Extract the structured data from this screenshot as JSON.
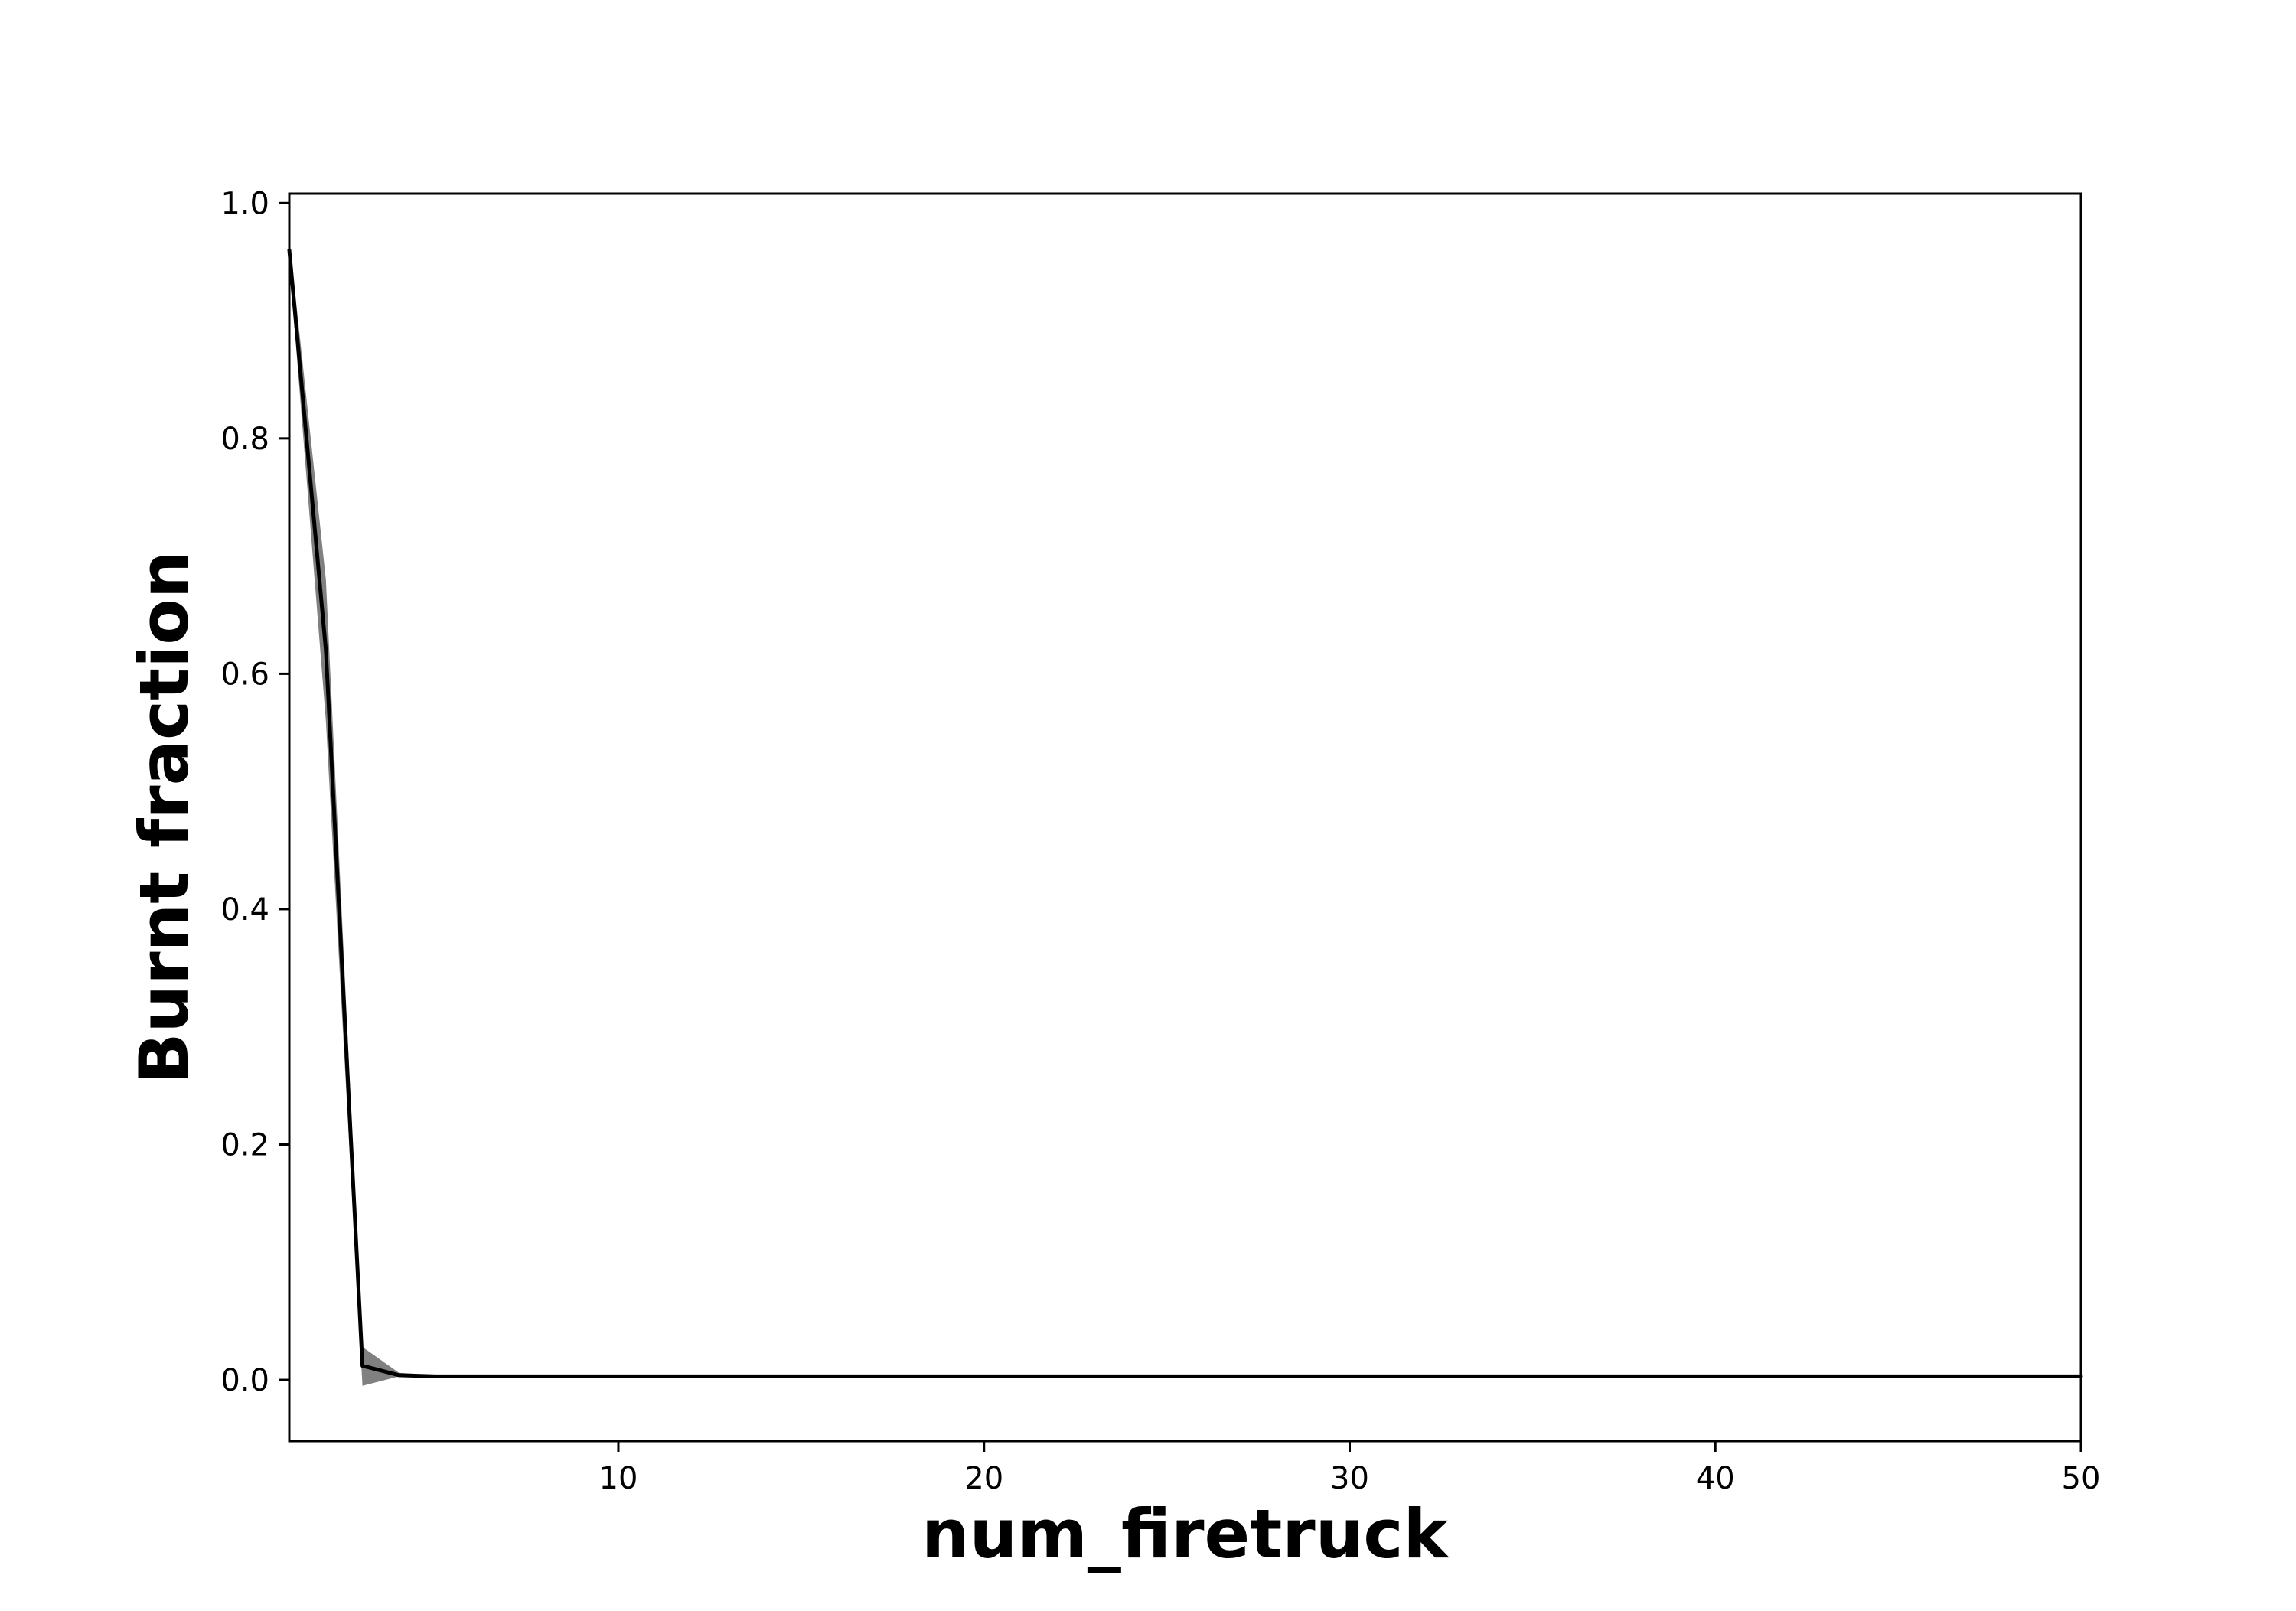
{
  "chart_data": {
    "type": "line",
    "title": "",
    "xlabel": "num_firetruck",
    "ylabel": "Burnt fraction",
    "xlim": [
      1,
      50
    ],
    "ylim": [
      -0.052,
      1.008
    ],
    "grid": false,
    "x_ticks": [
      10,
      20,
      30,
      40,
      50
    ],
    "y_ticks": [
      0.0,
      0.2,
      0.4,
      0.6,
      0.8,
      1.0
    ],
    "x_tick_labels": [
      "10",
      "20",
      "30",
      "40",
      "50"
    ],
    "y_tick_labels": [
      "0.0",
      "0.2",
      "0.4",
      "0.6",
      "0.8",
      "1.0"
    ],
    "series": [
      {
        "color": "#000000",
        "band_color": "#808080",
        "x": [
          1,
          2,
          3,
          4,
          5,
          6,
          7,
          8,
          9,
          10,
          11,
          12,
          13,
          14,
          15,
          16,
          17,
          18,
          19,
          20,
          21,
          22,
          23,
          24,
          25,
          26,
          27,
          28,
          29,
          30,
          31,
          32,
          33,
          34,
          35,
          36,
          37,
          38,
          39,
          40,
          41,
          42,
          43,
          44,
          45,
          46,
          47,
          48,
          49,
          50
        ],
        "y": [
          0.96,
          0.62,
          0.012,
          0.004,
          0.003,
          0.003,
          0.003,
          0.003,
          0.003,
          0.003,
          0.003,
          0.003,
          0.003,
          0.003,
          0.003,
          0.003,
          0.003,
          0.003,
          0.003,
          0.003,
          0.003,
          0.003,
          0.003,
          0.003,
          0.003,
          0.003,
          0.003,
          0.003,
          0.003,
          0.003,
          0.003,
          0.003,
          0.003,
          0.003,
          0.003,
          0.003,
          0.003,
          0.003,
          0.003,
          0.003,
          0.003,
          0.003,
          0.003,
          0.003,
          0.003,
          0.003,
          0.003,
          0.003,
          0.003,
          0.003
        ],
        "lower": [
          0.95,
          0.56,
          -0.005,
          0.003,
          0.003,
          0.003,
          0.003,
          0.003,
          0.003,
          0.003,
          0.003,
          0.003,
          0.003,
          0.003,
          0.003,
          0.003,
          0.003,
          0.003,
          0.003,
          0.003,
          0.003,
          0.003,
          0.003,
          0.003,
          0.003,
          0.003,
          0.003,
          0.003,
          0.003,
          0.003,
          0.003,
          0.003,
          0.003,
          0.003,
          0.003,
          0.003,
          0.003,
          0.003,
          0.003,
          0.003,
          0.003,
          0.003,
          0.003,
          0.003,
          0.003,
          0.003,
          0.003,
          0.003,
          0.003,
          0.003
        ],
        "upper": [
          0.97,
          0.68,
          0.028,
          0.006,
          0.004,
          0.004,
          0.004,
          0.004,
          0.004,
          0.004,
          0.004,
          0.004,
          0.004,
          0.004,
          0.004,
          0.004,
          0.004,
          0.004,
          0.004,
          0.004,
          0.004,
          0.004,
          0.004,
          0.004,
          0.004,
          0.004,
          0.004,
          0.004,
          0.004,
          0.004,
          0.004,
          0.004,
          0.004,
          0.004,
          0.004,
          0.004,
          0.004,
          0.004,
          0.004,
          0.004,
          0.004,
          0.004,
          0.004,
          0.004,
          0.004,
          0.004,
          0.004,
          0.004,
          0.004,
          0.004
        ]
      }
    ]
  }
}
